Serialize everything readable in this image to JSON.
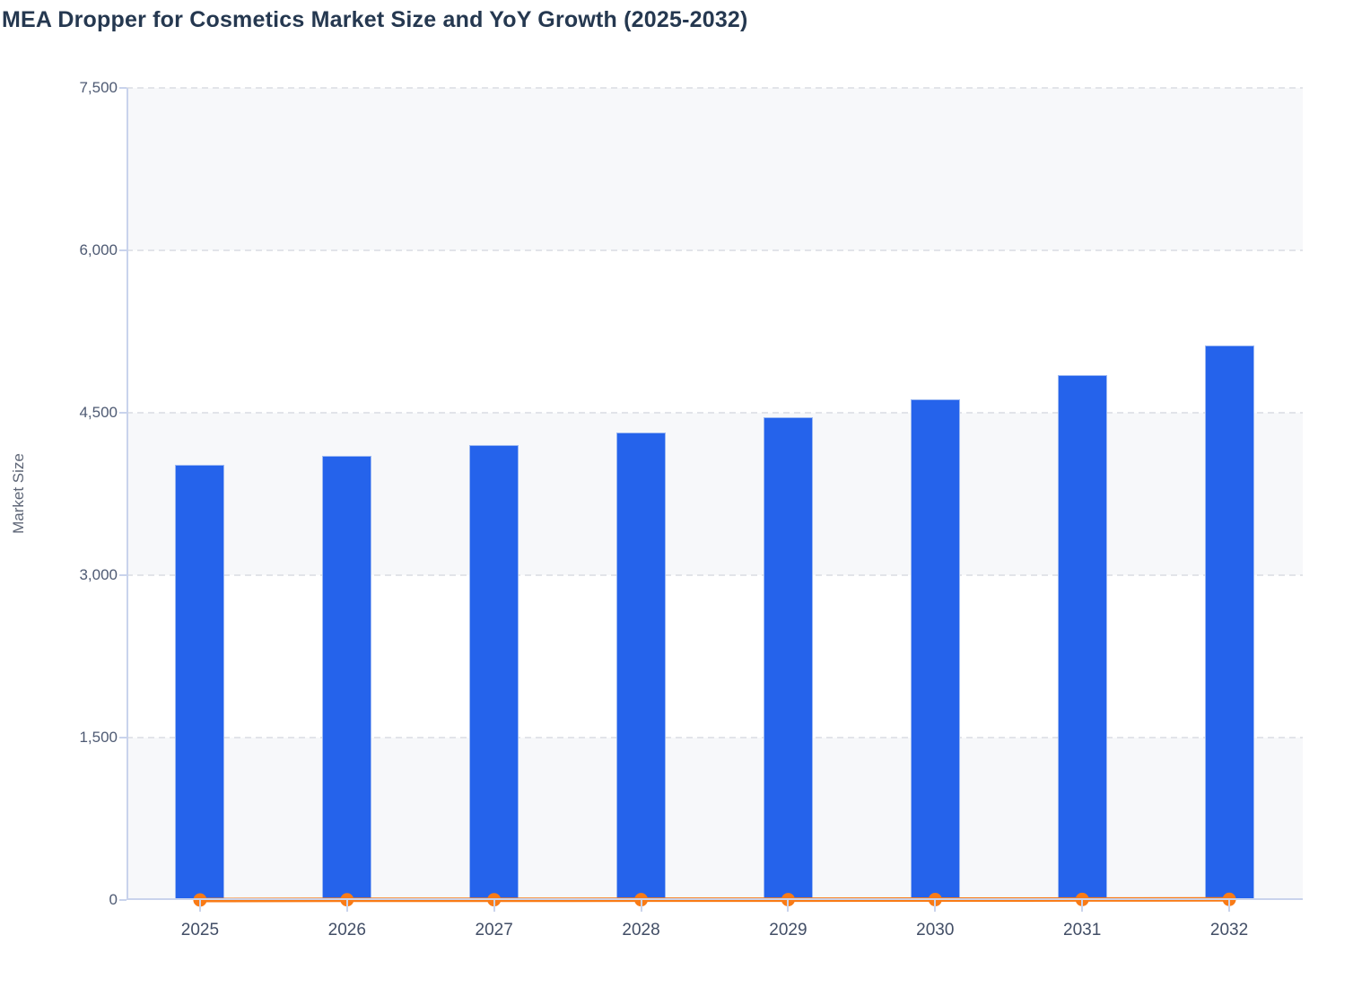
{
  "header": {
    "title": "MEA Dropper for Cosmetics Market Size and YoY Growth (2025-2032)"
  },
  "chart_data": {
    "type": "bar",
    "title": "MEA Dropper for Cosmetics Market Size and YoY Growth (2025-2032)",
    "categories": [
      "2025",
      "2026",
      "2027",
      "2028",
      "2029",
      "2030",
      "2031",
      "2032"
    ],
    "series": [
      {
        "name": "Market Size",
        "type": "bar",
        "color": "#2563eb",
        "values": [
          4020,
          4100,
          4200,
          4315,
          4455,
          4625,
          4845,
          5125
        ]
      },
      {
        "name": "YoY Growth",
        "type": "line",
        "color": "#f97b16",
        "values": [
          0,
          2.0,
          2.4,
          2.7,
          3.2,
          3.8,
          4.8,
          5.8
        ],
        "axis_note": "rendered on the Market Size axis, so the line sits flat at ~0"
      }
    ],
    "xlabel": "",
    "ylabel": "Market Size",
    "ylim": [
      0,
      7500
    ],
    "yticks": [
      0,
      1500,
      3000,
      4500,
      6000,
      7500
    ],
    "ytick_labels": [
      "0",
      "1,500",
      "3,000",
      "4,500",
      "6,000",
      "7,500"
    ],
    "grid": "horizontal dashed gridlines",
    "plot_bands_alternating": [
      "#f7f8fa",
      "#ffffff"
    ],
    "legend": "none"
  },
  "colors": {
    "bar_fill": "#2563eb",
    "bar_border": "#9db9f2",
    "line": "#f97b16",
    "axis_line": "#c9d3ec",
    "gridline": "#e2e4e9",
    "band_shade": "#f7f8fa",
    "band_light": "#ffffff",
    "title_text": "#253850",
    "x_label_text": "#424e66",
    "y_label_text": "#4e5a73",
    "axis_title_text": "#5d6576"
  }
}
